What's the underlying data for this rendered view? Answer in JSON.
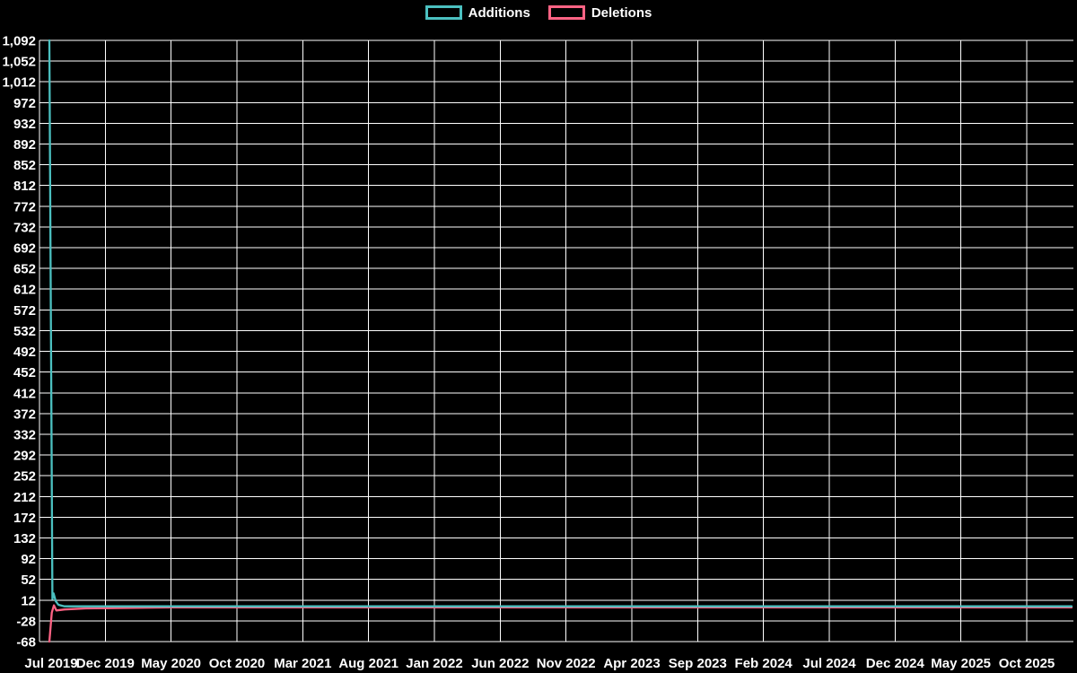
{
  "legend": {
    "items": [
      {
        "label": "Additions",
        "color": "#4bc0c0"
      },
      {
        "label": "Deletions",
        "color": "#ff6384"
      }
    ]
  },
  "chart_data": {
    "type": "line",
    "title": "",
    "xlabel": "",
    "ylabel": "",
    "background_color": "#000000",
    "grid_color": "#ffffff",
    "text_color": "#ffffff",
    "grid": true,
    "legend_position": "top-center",
    "ylim": [
      -68,
      1092
    ],
    "y_ticks": [
      -68,
      -28,
      12,
      52,
      92,
      132,
      172,
      212,
      252,
      292,
      332,
      372,
      412,
      452,
      492,
      532,
      572,
      612,
      652,
      692,
      732,
      772,
      812,
      852,
      892,
      932,
      972,
      1012,
      1052,
      1092
    ],
    "y_tick_labels": [
      "-68",
      "-28",
      "12",
      "52",
      "92",
      "132",
      "172",
      "212",
      "252",
      "292",
      "332",
      "372",
      "412",
      "452",
      "492",
      "532",
      "572",
      "612",
      "652",
      "692",
      "732",
      "772",
      "812",
      "852",
      "892",
      "932",
      "972",
      "1,012",
      "1,052",
      "1,092"
    ],
    "x_tick_labels": [
      "Jul 2019",
      "Dec 2019",
      "May 2020",
      "Oct 2020",
      "Mar 2021",
      "Aug 2021",
      "Jan 2022",
      "Jun 2022",
      "Nov 2022",
      "Apr 2023",
      "Sep 2023",
      "Feb 2024",
      "Jul 2024",
      "Dec 2024",
      "May 2025",
      "Oct 2025"
    ],
    "x_unit": "weeks since first data point (~late Jul 2019)",
    "series": [
      {
        "name": "Additions",
        "color": "#4bc0c0",
        "points": [
          [
            0,
            1092
          ],
          [
            1,
            14
          ],
          [
            1.4,
            25
          ],
          [
            2.1,
            10
          ],
          [
            3,
            3
          ],
          [
            5,
            0
          ],
          [
            338,
            0
          ]
        ]
      },
      {
        "name": "Deletions",
        "color": "#ff6384",
        "points": [
          [
            0,
            -68
          ],
          [
            0.8,
            -12
          ],
          [
            1.5,
            2
          ],
          [
            2.3,
            -8
          ],
          [
            5,
            -6
          ],
          [
            12,
            -4
          ],
          [
            40,
            -2
          ],
          [
            338,
            -2
          ]
        ]
      }
    ]
  }
}
